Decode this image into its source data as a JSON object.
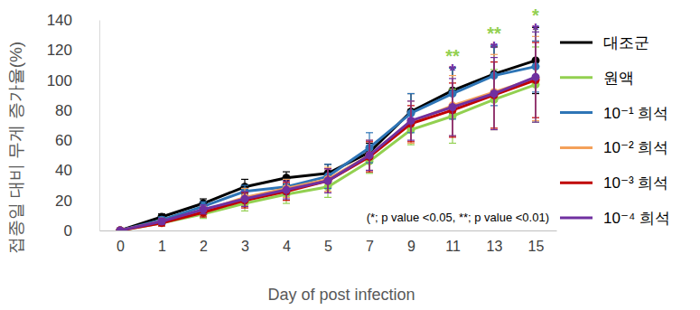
{
  "chart_data": {
    "type": "line",
    "x_label": "Day of post infection",
    "y_label": "접종일 대비 무게 증가율(%)",
    "categories": [
      "0",
      "1",
      "2",
      "3",
      "4",
      "5",
      "7",
      "9",
      "11",
      "13",
      "15"
    ],
    "ylim": [
      0,
      140
    ],
    "yticks": [
      0,
      20,
      40,
      60,
      80,
      100,
      120,
      140
    ],
    "grid": false,
    "legend": "right",
    "marker": "circle",
    "series": [
      {
        "name": "대조군",
        "color": "#000000",
        "values": [
          0,
          9,
          18,
          29,
          35,
          38,
          52,
          79,
          93,
          104,
          113
        ],
        "errors": [
          0,
          2,
          3,
          5,
          4,
          6,
          6,
          12,
          15,
          18,
          22
        ]
      },
      {
        "name": "원액",
        "color": "#92d050",
        "values": [
          0,
          5,
          11,
          18,
          24,
          29,
          46,
          67,
          76,
          87,
          97
        ],
        "errors": [
          0,
          2,
          3,
          5,
          6,
          7,
          8,
          10,
          18,
          20,
          25
        ]
      },
      {
        "name": "10⁻¹ 희석",
        "color": "#2e75b6",
        "values": [
          0,
          7,
          16,
          26,
          29,
          36,
          55,
          78,
          91,
          103,
          109
        ],
        "errors": [
          0,
          2,
          3,
          4,
          5,
          8,
          10,
          13,
          17,
          20,
          17
        ]
      },
      {
        "name": "10⁻² 희석",
        "color": "#f4a15a",
        "values": [
          0,
          6,
          13,
          22,
          28,
          34,
          50,
          72,
          83,
          92,
          101
        ],
        "errors": [
          0,
          2,
          3,
          6,
          6,
          8,
          10,
          14,
          20,
          25,
          28
        ]
      },
      {
        "name": "10⁻³ 희석",
        "color": "#c00000",
        "values": [
          0,
          5,
          12,
          20,
          26,
          33,
          49,
          71,
          80,
          90,
          100
        ],
        "errors": [
          0,
          2,
          3,
          5,
          6,
          8,
          10,
          12,
          18,
          22,
          25
        ]
      },
      {
        "name": "10⁻⁴ 희석",
        "color": "#7030a0",
        "values": [
          0,
          6,
          14,
          21,
          27,
          33,
          50,
          73,
          82,
          91,
          102
        ],
        "errors": [
          0,
          2,
          3,
          5,
          6,
          8,
          10,
          13,
          19,
          24,
          30
        ]
      }
    ],
    "annotations": [
      {
        "text": "(*; p value <0.05, **; p value <0.01)"
      },
      {
        "text": "*",
        "x": "11",
        "series": "10⁻⁴ 희석"
      },
      {
        "text": "**",
        "x": "11",
        "series": "원액"
      },
      {
        "text": "*",
        "x": "13",
        "series": "10⁻⁴ 희석"
      },
      {
        "text": "**",
        "x": "13",
        "series": "원액"
      },
      {
        "text": "*",
        "x": "15",
        "series": "10⁻⁴ 희석"
      },
      {
        "text": "*",
        "x": "15",
        "series": "원액"
      }
    ]
  }
}
